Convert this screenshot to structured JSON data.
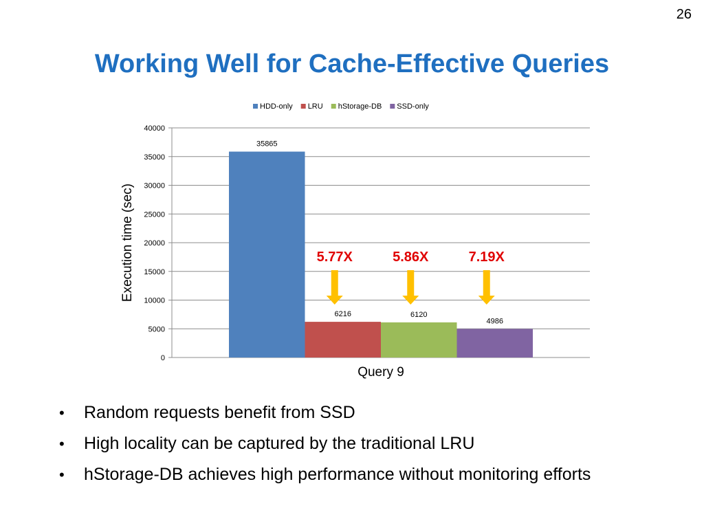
{
  "slide": {
    "number": "26",
    "title": "Working Well for Cache-Effective Queries",
    "bullets": [
      "Random requests benefit from SSD",
      "High locality can be captured by the traditional LRU",
      "hStorage-DB achieves high performance without monitoring efforts"
    ]
  },
  "chart_data": {
    "type": "bar",
    "categories": [
      "Query 9"
    ],
    "series": [
      {
        "name": "HDD-only",
        "values": [
          35865
        ],
        "color": "#4f81bd",
        "data_label": "35865"
      },
      {
        "name": "LRU",
        "values": [
          6216
        ],
        "color": "#c0504d",
        "data_label": "6216"
      },
      {
        "name": "hStorage-DB",
        "values": [
          6120
        ],
        "color": "#9bbb59",
        "data_label": "6120"
      },
      {
        "name": "SSD-only",
        "values": [
          4986
        ],
        "color": "#8064a2",
        "data_label": "4986"
      }
    ],
    "ylabel": "Execution time (sec)",
    "xlabel": "",
    "ylim": [
      0,
      40000
    ],
    "yticks": [
      "0",
      "5000",
      "10000",
      "15000",
      "20000",
      "25000",
      "30000",
      "35000",
      "40000"
    ],
    "grid": true,
    "legend_position": "top",
    "annotations": [
      {
        "text": "5.77X",
        "series": "LRU",
        "color": "#e00000",
        "arrow_color": "#ffc000"
      },
      {
        "text": "5.86X",
        "series": "hStorage-DB",
        "color": "#e00000",
        "arrow_color": "#ffc000"
      },
      {
        "text": "7.19X",
        "series": "SSD-only",
        "color": "#e00000",
        "arrow_color": "#ffc000"
      }
    ]
  }
}
